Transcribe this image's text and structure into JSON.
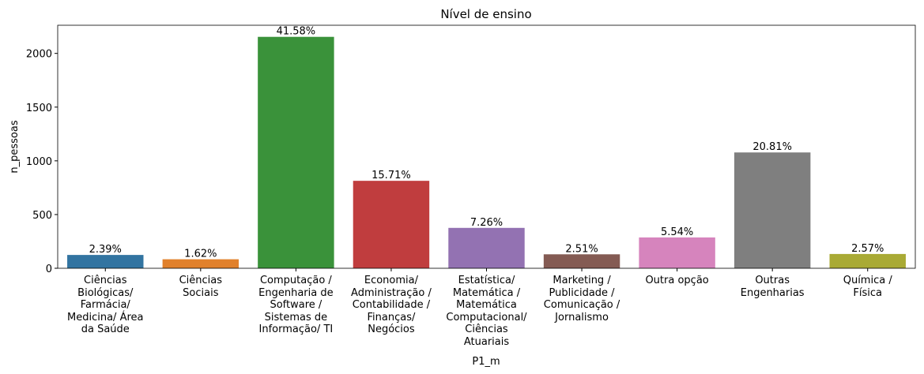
{
  "chart_data": {
    "type": "bar",
    "title": "Nível de ensino",
    "x_label": "P1_m",
    "y_label": "n_pessoas",
    "categories": [
      "Ciências\nBiológicas/\nFarmácia/\nMedicina/ Área\nda Saúde",
      "Ciências\nSociais",
      "Computação /\nEngenharia de\nSoftware /\nSistemas de\nInformação/ TI",
      "Economia/\nAdministração /\nContabilidade /\nFinanças/\nNegócios",
      "Estatística/\nMatemática /\nMatemática\nComputacional/\nCiências\nAtuariais",
      "Marketing /\nPublicidade /\nComunicação /\nJornalismo",
      "Outra opção",
      "Outras\nEngenharias",
      "Química /\nFísica"
    ],
    "values": [
      124,
      84,
      2154,
      814,
      376,
      130,
      287,
      1078,
      133
    ],
    "value_labels": [
      "2.39%",
      "1.62%",
      "41.58%",
      "15.71%",
      "7.26%",
      "2.51%",
      "5.54%",
      "20.81%",
      "2.57%"
    ],
    "colors": [
      "#3274a1",
      "#e1812c",
      "#3a923a",
      "#c03d3e",
      "#9372b2",
      "#845b53",
      "#d684bd",
      "#7f7f7f",
      "#a9aa35"
    ],
    "ylim": [
      0,
      2262
    ],
    "yticks": [
      0,
      500,
      1000,
      1500,
      2000
    ],
    "grid": false
  }
}
